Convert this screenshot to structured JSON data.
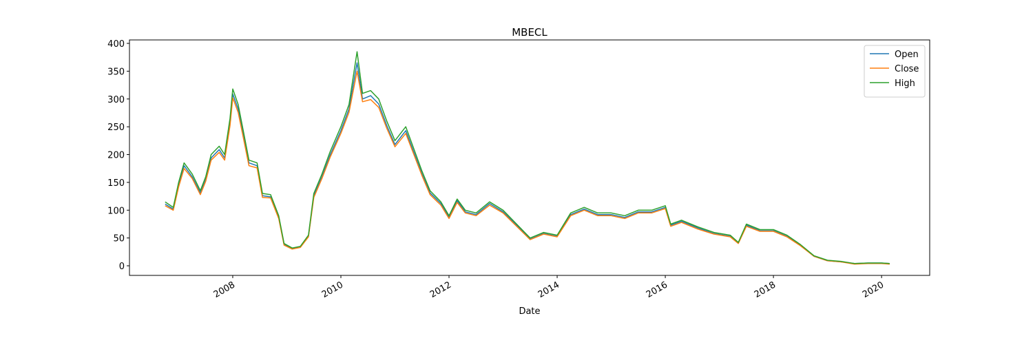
{
  "chart_data": {
    "type": "line",
    "title": "MBECL",
    "x_label": "Date",
    "x": [
      2006.75,
      2006.9,
      2007.0,
      2007.1,
      2007.25,
      2007.4,
      2007.5,
      2007.6,
      2007.75,
      2007.85,
      2007.95,
      2008.0,
      2008.1,
      2008.2,
      2008.3,
      2008.45,
      2008.55,
      2008.7,
      2008.85,
      2008.95,
      2009.1,
      2009.25,
      2009.4,
      2009.5,
      2009.65,
      2009.8,
      2010.0,
      2010.15,
      2010.3,
      2010.4,
      2010.55,
      2010.7,
      2010.85,
      2011.0,
      2011.2,
      2011.35,
      2011.5,
      2011.65,
      2011.85,
      2012.0,
      2012.15,
      2012.3,
      2012.5,
      2012.75,
      2013.0,
      2013.25,
      2013.5,
      2013.75,
      2014.0,
      2014.25,
      2014.5,
      2014.75,
      2015.0,
      2015.25,
      2015.5,
      2015.75,
      2016.0,
      2016.1,
      2016.3,
      2016.6,
      2016.9,
      2017.2,
      2017.35,
      2017.5,
      2017.75,
      2018.0,
      2018.25,
      2018.5,
      2018.75,
      2019.0,
      2019.25,
      2019.5,
      2019.75,
      2020.0,
      2020.15
    ],
    "series": [
      {
        "name": "Open",
        "color": "#1f77b4",
        "values": [
          111,
          102,
          146,
          180,
          160,
          131,
          155,
          194,
          209,
          194,
          257,
          309,
          282,
          233,
          185,
          180,
          126,
          124,
          87,
          38,
          31,
          34,
          53,
          126,
          160,
          199,
          243,
          282,
          365,
          300,
          306,
          291,
          252,
          218,
          243,
          204,
          165,
          131,
          112,
          87,
          117,
          97,
          92,
          112,
          97,
          73,
          48,
          58,
          53,
          92,
          102,
          92,
          92,
          87,
          97,
          97,
          105,
          73,
          80,
          68,
          58,
          53,
          41,
          73,
          63,
          63,
          53,
          37,
          17,
          9,
          7,
          4,
          5,
          5,
          4
        ]
      },
      {
        "name": "Close",
        "color": "#ff7f0e",
        "values": [
          108,
          100,
          142,
          175,
          157,
          128,
          152,
          190,
          204,
          190,
          252,
          302,
          276,
          228,
          180,
          176,
          123,
          122,
          85,
          37,
          30,
          33,
          52,
          123,
          157,
          195,
          238,
          276,
          350,
          295,
          299,
          285,
          247,
          214,
          238,
          200,
          162,
          128,
          109,
          85,
          114,
          95,
          90,
          109,
          95,
          71,
          47,
          57,
          52,
          90,
          100,
          90,
          90,
          85,
          95,
          95,
          103,
          71,
          78,
          66,
          57,
          52,
          40,
          71,
          62,
          62,
          52,
          36,
          17,
          9,
          7,
          3,
          4,
          4,
          3
        ]
      },
      {
        "name": "High",
        "color": "#2ca02c",
        "values": [
          115,
          105,
          150,
          185,
          165,
          135,
          160,
          200,
          215,
          200,
          265,
          318,
          290,
          240,
          190,
          185,
          130,
          128,
          90,
          40,
          32,
          35,
          55,
          130,
          165,
          205,
          250,
          290,
          385,
          310,
          315,
          300,
          260,
          225,
          250,
          210,
          170,
          135,
          115,
          90,
          120,
          100,
          95,
          115,
          100,
          75,
          50,
          60,
          55,
          95,
          105,
          95,
          95,
          90,
          100,
          100,
          108,
          75,
          82,
          70,
          60,
          55,
          42,
          75,
          65,
          65,
          55,
          38,
          18,
          10,
          8,
          4,
          5,
          5,
          4
        ]
      }
    ],
    "xlim": [
      2006.09,
      2020.89
    ],
    "xticks": [
      2008,
      2010,
      2012,
      2014,
      2016,
      2018,
      2020
    ],
    "ylim": [
      -17.3,
      406.2
    ],
    "yticks": [
      0,
      50,
      100,
      150,
      200,
      250,
      300,
      350,
      400
    ],
    "legend": "upper right"
  }
}
